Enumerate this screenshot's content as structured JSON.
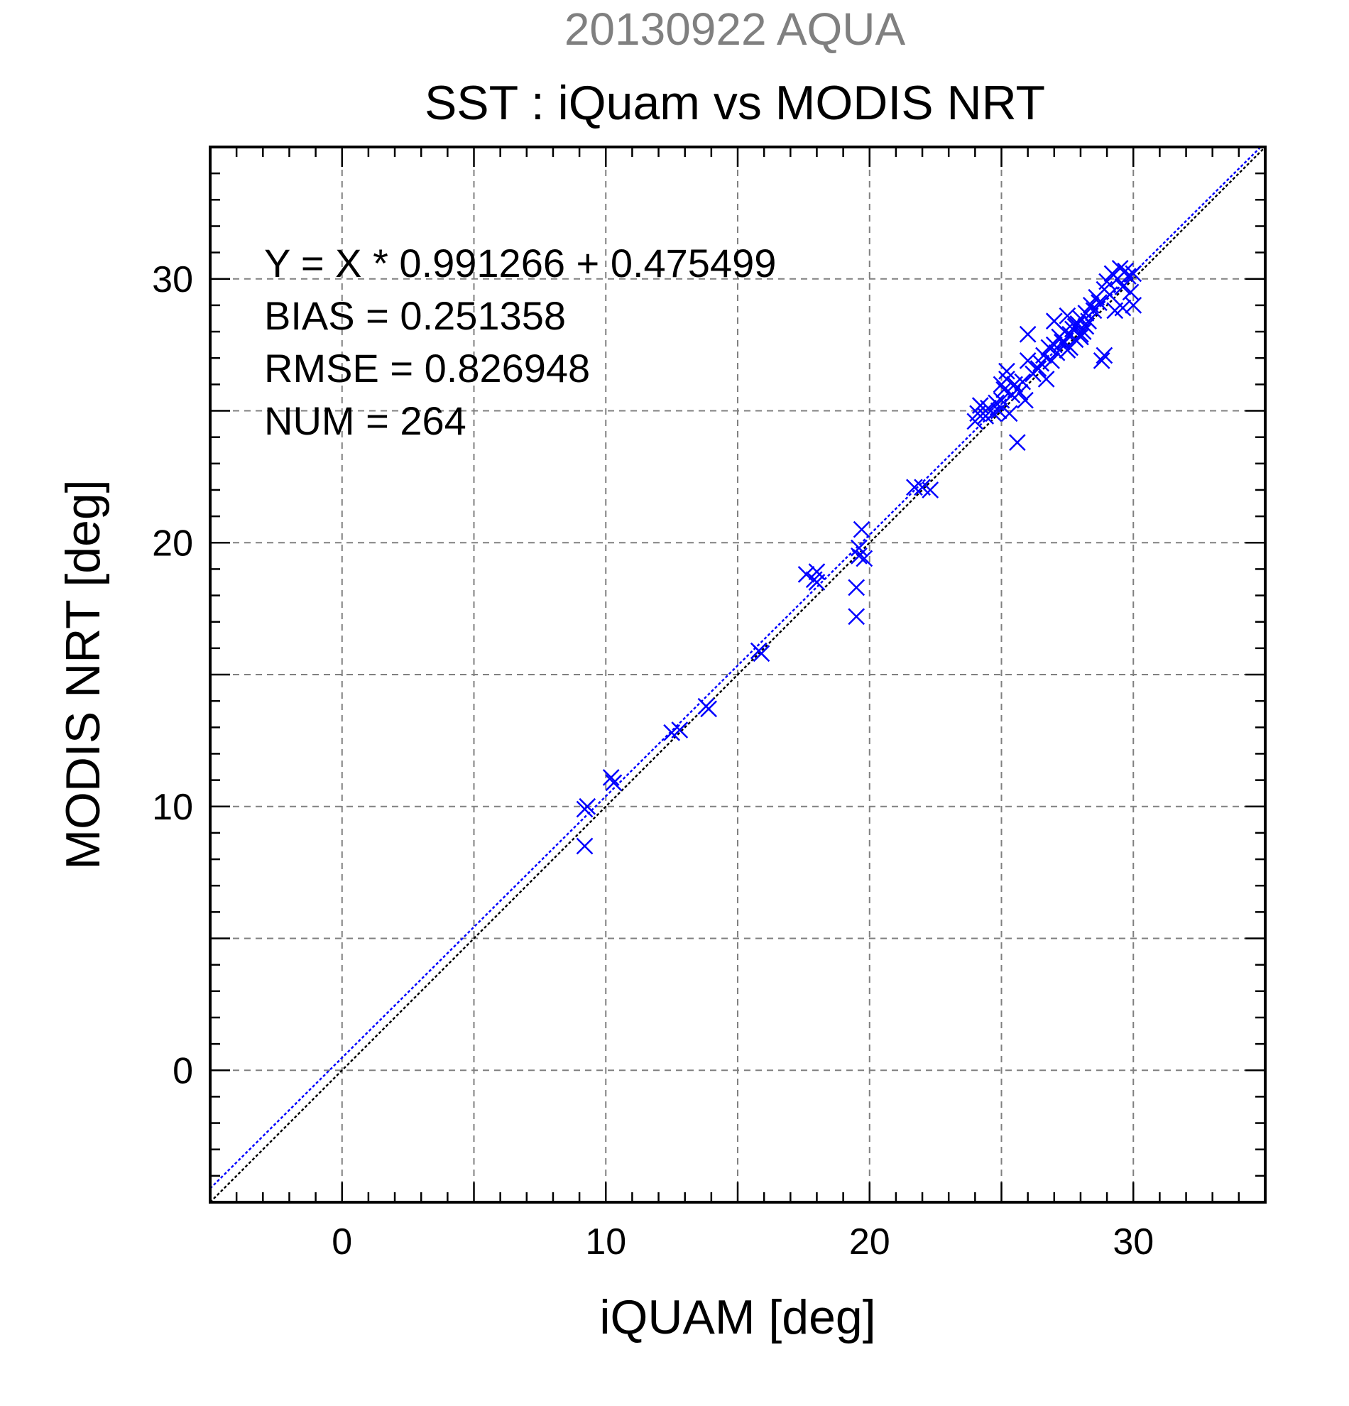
{
  "chart_data": {
    "type": "scatter",
    "title_top": "20130922 AQUA",
    "title": "SST : iQuam vs MODIS NRT",
    "xlabel": "iQUAM [deg]",
    "ylabel": "MODIS NRT [deg]",
    "xlim": [
      -5,
      35
    ],
    "ylim": [
      -5,
      35
    ],
    "xticks": [
      0,
      10,
      20,
      30
    ],
    "yticks": [
      0,
      10,
      20,
      30
    ],
    "grid": true,
    "grid_step": 5,
    "marker": "x",
    "stats": [
      "Y = X * 0.991266 + 0.475499",
      "BIAS = 0.251358",
      "RMSE = 0.826948",
      "NUM = 264"
    ],
    "fit": {
      "slope": 0.991266,
      "intercept": 0.475499
    },
    "colors": {
      "points": "#0000ff",
      "fit_line": "#0000ff",
      "one_to_one": "#000000",
      "grid": "#808080",
      "title_top": "#808080"
    },
    "series": [
      {
        "points": [
          [
            9.2,
            9.9
          ],
          [
            9.3,
            10.0
          ],
          [
            9.2,
            8.5
          ],
          [
            10.2,
            11.1
          ],
          [
            10.3,
            10.9
          ],
          [
            12.5,
            12.8
          ],
          [
            12.8,
            12.9
          ],
          [
            13.8,
            13.8
          ],
          [
            13.9,
            13.7
          ],
          [
            15.8,
            15.9
          ],
          [
            15.9,
            15.8
          ],
          [
            17.6,
            18.8
          ],
          [
            17.9,
            18.6
          ],
          [
            18.0,
            18.9
          ],
          [
            18.0,
            18.5
          ],
          [
            19.5,
            17.2
          ],
          [
            19.5,
            18.3
          ],
          [
            19.6,
            19.5
          ],
          [
            19.7,
            20.5
          ],
          [
            19.8,
            19.4
          ],
          [
            19.6,
            19.8
          ],
          [
            21.7,
            22.1
          ],
          [
            22.0,
            22.1
          ],
          [
            22.3,
            22.0
          ],
          [
            24.0,
            24.6
          ],
          [
            24.1,
            24.9
          ],
          [
            24.2,
            25.2
          ],
          [
            24.4,
            24.8
          ],
          [
            24.5,
            25.1
          ],
          [
            24.7,
            24.9
          ],
          [
            24.8,
            25.3
          ],
          [
            24.9,
            25.0
          ],
          [
            25.0,
            25.4
          ],
          [
            25.1,
            25.8
          ],
          [
            25.2,
            26.2
          ],
          [
            25.3,
            24.9
          ],
          [
            25.4,
            25.6
          ],
          [
            25.5,
            26.0
          ],
          [
            25.6,
            23.8
          ],
          [
            25.7,
            25.7
          ],
          [
            25.8,
            26.1
          ],
          [
            25.9,
            25.4
          ],
          [
            26.0,
            26.9
          ],
          [
            25.2,
            26.5
          ],
          [
            25.0,
            26.0
          ],
          [
            26.0,
            27.9
          ],
          [
            26.2,
            26.4
          ],
          [
            26.4,
            26.6
          ],
          [
            26.5,
            26.8
          ],
          [
            26.6,
            27.1
          ],
          [
            26.7,
            26.2
          ],
          [
            26.8,
            27.4
          ],
          [
            26.9,
            26.9
          ],
          [
            27.0,
            27.5
          ],
          [
            27.0,
            28.4
          ],
          [
            27.1,
            27.2
          ],
          [
            27.2,
            27.8
          ],
          [
            27.3,
            27.6
          ],
          [
            27.4,
            28.0
          ],
          [
            27.5,
            27.3
          ],
          [
            27.5,
            28.6
          ],
          [
            27.6,
            27.9
          ],
          [
            27.7,
            28.1
          ],
          [
            27.8,
            27.7
          ],
          [
            27.9,
            28.3
          ],
          [
            28.0,
            27.8
          ],
          [
            28.0,
            28.5
          ],
          [
            28.1,
            28.0
          ],
          [
            28.2,
            28.7
          ],
          [
            28.3,
            28.4
          ],
          [
            28.4,
            29.0
          ],
          [
            28.5,
            28.8
          ],
          [
            28.6,
            29.3
          ],
          [
            28.7,
            29.1
          ],
          [
            28.8,
            26.9
          ],
          [
            28.9,
            27.1
          ],
          [
            28.9,
            29.6
          ],
          [
            29.0,
            29.9
          ],
          [
            29.1,
            29.4
          ],
          [
            29.2,
            30.2
          ],
          [
            29.3,
            28.8
          ],
          [
            29.4,
            30.0
          ],
          [
            29.5,
            30.4
          ],
          [
            29.6,
            29.7
          ],
          [
            29.7,
            30.3
          ],
          [
            29.8,
            30.1
          ],
          [
            29.9,
            29.5
          ],
          [
            30.0,
            29.0
          ],
          [
            30.0,
            30.2
          ],
          [
            29.6,
            28.9
          ],
          [
            27.4,
            27.6
          ],
          [
            27.8,
            28.2
          ],
          [
            28.2,
            28.2
          ],
          [
            27.6,
            27.4
          ],
          [
            28.0,
            27.9
          ]
        ]
      }
    ]
  }
}
